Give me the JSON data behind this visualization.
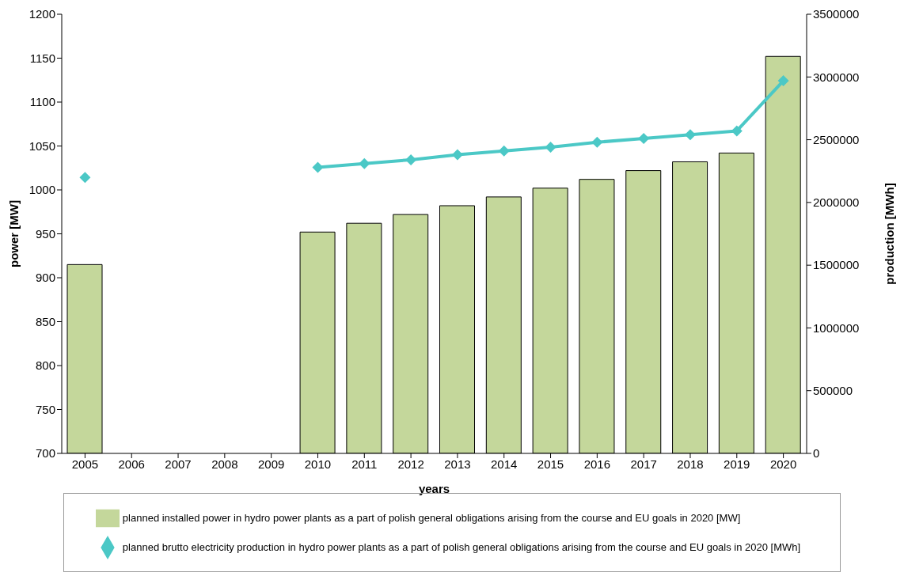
{
  "chart_data": {
    "type": "bar",
    "xlabel": "years",
    "ylabel": "power [MW]",
    "y2label": "production [MWh]",
    "categories": [
      "2005",
      "2006",
      "2007",
      "2008",
      "2009",
      "2010",
      "2011",
      "2012",
      "2013",
      "2014",
      "2015",
      "2016",
      "2017",
      "2018",
      "2019",
      "2020"
    ],
    "series": [
      {
        "name": "planned installed power in hydro power plants as a part of polish general obligations arising from the course and EU goals in 2020 [MW]",
        "color": "#c4d79b",
        "values": [
          915,
          null,
          null,
          null,
          null,
          952,
          962,
          972,
          982,
          992,
          1002,
          1012,
          1022,
          1032,
          1042,
          1152
        ]
      },
      {
        "name": "planned brutto electricity production in hydro power plants as a part of polish general obligations arising from the course and EU goals in 2020 [MWh]",
        "type": "line",
        "axis": "y2",
        "color": "#4bc8c6",
        "marker": "diamond",
        "values": [
          2200000,
          null,
          null,
          null,
          null,
          2280000,
          2310000,
          2340000,
          2380000,
          2410000,
          2440000,
          2480000,
          2510000,
          2540000,
          2570000,
          2970000
        ]
      }
    ],
    "ylim": [
      700,
      1200
    ],
    "yticks": [
      700,
      750,
      800,
      850,
      900,
      950,
      1000,
      1050,
      1100,
      1150,
      1200
    ],
    "y2lim": [
      0,
      3500000
    ],
    "y2ticks": [
      0,
      500000,
      1000000,
      1500000,
      2000000,
      2500000,
      3000000,
      3500000
    ],
    "grid": false,
    "legend": "bottom"
  }
}
